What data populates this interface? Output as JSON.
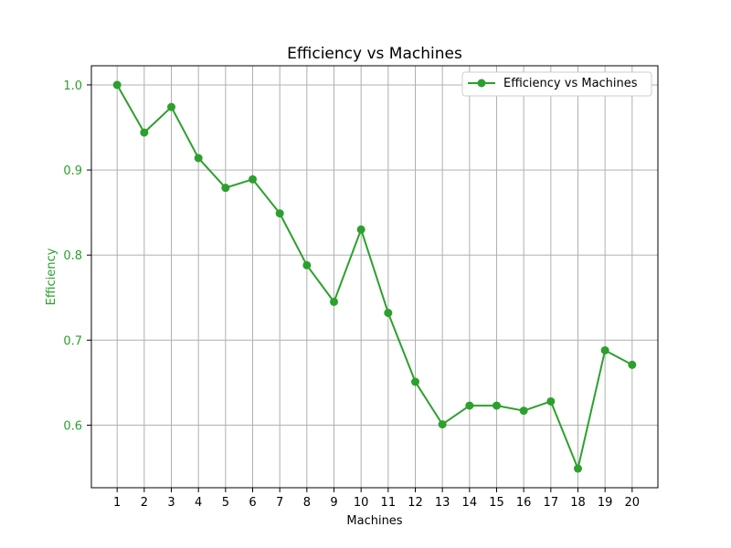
{
  "chart_data": {
    "type": "line",
    "title": "Efficiency vs Machines",
    "xlabel": "Machines",
    "ylabel": "Efficiency",
    "x": [
      1,
      2,
      3,
      4,
      5,
      6,
      7,
      8,
      9,
      10,
      11,
      12,
      13,
      14,
      15,
      16,
      17,
      18,
      19,
      20
    ],
    "series": [
      {
        "name": "Efficiency vs Machines",
        "values": [
          1.0,
          0.944,
          0.974,
          0.914,
          0.879,
          0.889,
          0.849,
          0.788,
          0.745,
          0.83,
          0.732,
          0.651,
          0.601,
          0.623,
          0.623,
          0.617,
          0.628,
          0.549,
          0.688,
          0.671
        ],
        "color": "#2ca02c",
        "marker": "circle"
      }
    ],
    "xlim": [
      0.05,
      20.95
    ],
    "ylim": [
      0.5265,
      1.0225
    ],
    "xticks": [
      1,
      2,
      3,
      4,
      5,
      6,
      7,
      8,
      9,
      10,
      11,
      12,
      13,
      14,
      15,
      16,
      17,
      18,
      19,
      20
    ],
    "yticks": [
      0.6,
      0.7,
      0.8,
      0.9,
      1.0
    ],
    "ytick_labels": [
      "0.6",
      "0.7",
      "0.8",
      "0.9",
      "1.0"
    ],
    "ylabel_color": "#2ca02c",
    "ytick_color": "#2ca02c",
    "grid": true,
    "legend_position": "top-right"
  }
}
